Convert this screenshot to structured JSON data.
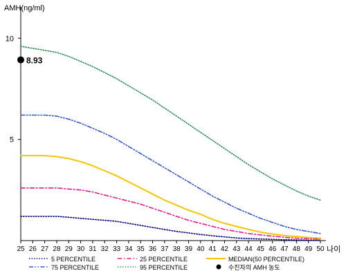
{
  "chart_data": {
    "type": "line",
    "ylabel": "AMH(ng/ml)",
    "xlabel": "나이",
    "x": [
      25,
      26,
      27,
      28,
      29,
      30,
      31,
      32,
      33,
      34,
      35,
      36,
      37,
      38,
      39,
      40,
      41,
      42,
      43,
      44,
      45,
      46,
      47,
      48,
      49,
      50
    ],
    "xlim": [
      25,
      50
    ],
    "ylim": [
      0,
      11
    ],
    "yticks": [
      5,
      10
    ],
    "grid": false,
    "legend_position": "bottom",
    "series": [
      {
        "name": "5 PERCENTILE",
        "color": "#00007a",
        "dash": "dotted",
        "values": [
          1.2,
          1.2,
          1.2,
          1.2,
          1.15,
          1.1,
          1.05,
          1.0,
          0.95,
          0.85,
          0.75,
          0.65,
          0.55,
          0.45,
          0.38,
          0.3,
          0.24,
          0.18,
          0.13,
          0.1,
          0.08,
          0.06,
          0.04,
          0.03,
          0.02,
          0.02
        ]
      },
      {
        "name": "25 PERCENTILE",
        "color": "#e0198c",
        "dash": "dashdot",
        "values": [
          2.6,
          2.6,
          2.6,
          2.6,
          2.55,
          2.5,
          2.4,
          2.25,
          2.1,
          1.95,
          1.8,
          1.6,
          1.4,
          1.2,
          1.0,
          0.85,
          0.7,
          0.55,
          0.45,
          0.35,
          0.28,
          0.22,
          0.16,
          0.12,
          0.1,
          0.08
        ]
      },
      {
        "name": "MEDIAN(50 PERCENTILE)",
        "color": "#f5c400",
        "dash": "solid",
        "values": [
          4.2,
          4.2,
          4.2,
          4.15,
          4.05,
          3.9,
          3.7,
          3.45,
          3.2,
          2.9,
          2.6,
          2.3,
          2.0,
          1.75,
          1.5,
          1.3,
          1.05,
          0.85,
          0.7,
          0.55,
          0.42,
          0.32,
          0.25,
          0.2,
          0.15,
          0.12
        ]
      },
      {
        "name": "75 PERCENTILE",
        "color": "#3355cc",
        "dash": "dashdotdot",
        "values": [
          6.2,
          6.2,
          6.2,
          6.15,
          6.0,
          5.8,
          5.55,
          5.3,
          5.0,
          4.65,
          4.3,
          3.95,
          3.6,
          3.25,
          2.9,
          2.55,
          2.2,
          1.9,
          1.6,
          1.35,
          1.1,
          0.9,
          0.7,
          0.55,
          0.45,
          0.35
        ]
      },
      {
        "name": "95 PERCENTILE",
        "color": "#2e8b57",
        "dash": "dotted",
        "values": [
          9.6,
          9.5,
          9.4,
          9.3,
          9.1,
          8.85,
          8.6,
          8.3,
          8.0,
          7.65,
          7.3,
          6.95,
          6.55,
          6.15,
          5.75,
          5.35,
          4.95,
          4.55,
          4.15,
          3.75,
          3.4,
          3.05,
          2.75,
          2.45,
          2.2,
          2.0
        ]
      }
    ],
    "marker": {
      "name": "수진자의 AMH 농도",
      "x": 25,
      "y": 8.93,
      "label": "8.93",
      "color": "#000000"
    },
    "legend_order": [
      "5 PERCENTILE",
      "25 PERCENTILE",
      "MEDIAN(50 PERCENTILE)",
      "75 PERCENTILE",
      "95 PERCENTILE",
      "수진자의 AMH 농도"
    ]
  }
}
